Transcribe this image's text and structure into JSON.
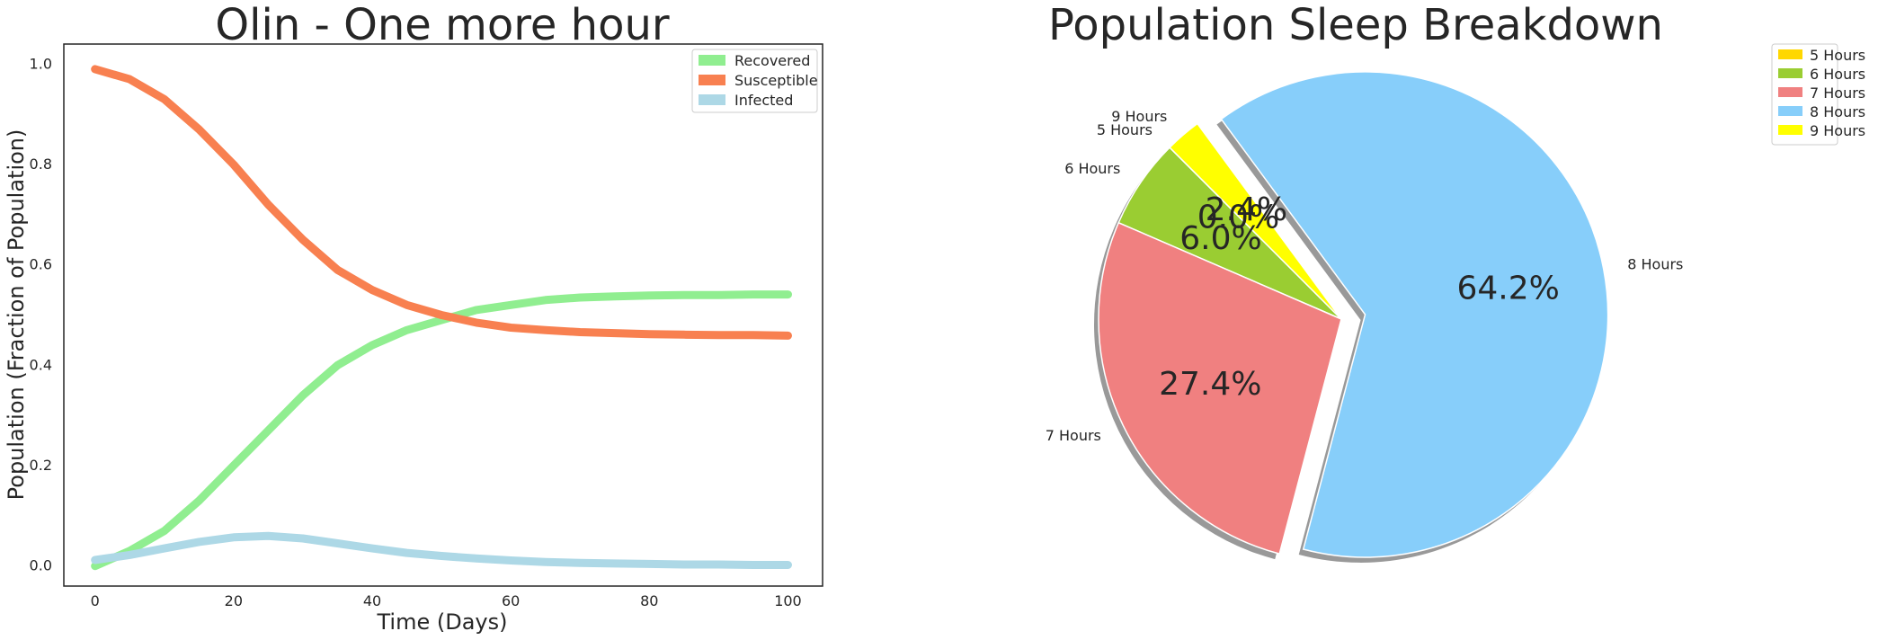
{
  "chart_data": [
    {
      "type": "line",
      "title": "Olin - One more hour",
      "xlabel": "Time (Days)",
      "ylabel": "Population (Fraction of Population)",
      "xlim": [
        -4.5,
        105
      ],
      "ylim": [
        -0.04,
        1.04
      ],
      "x_ticks": [
        "0",
        "20",
        "40",
        "60",
        "80",
        "100"
      ],
      "y_ticks": [
        "0.0",
        "0.2",
        "0.4",
        "0.6",
        "0.8",
        "1.0"
      ],
      "grid": false,
      "legend_position": "upper right",
      "x": [
        0,
        5,
        10,
        15,
        20,
        25,
        30,
        35,
        40,
        45,
        50,
        55,
        60,
        65,
        70,
        75,
        80,
        85,
        90,
        95,
        100
      ],
      "series": [
        {
          "name": "Recovered",
          "color": "#90ee90",
          "values": [
            0.0,
            0.03,
            0.07,
            0.13,
            0.2,
            0.27,
            0.34,
            0.4,
            0.44,
            0.47,
            0.49,
            0.51,
            0.52,
            0.53,
            0.535,
            0.537,
            0.539,
            0.54,
            0.54,
            0.541,
            0.541
          ]
        },
        {
          "name": "Susceptible",
          "color": "#f88050",
          "values": [
            0.99,
            0.97,
            0.93,
            0.87,
            0.8,
            0.72,
            0.65,
            0.59,
            0.55,
            0.52,
            0.5,
            0.485,
            0.475,
            0.47,
            0.466,
            0.464,
            0.462,
            0.461,
            0.46,
            0.46,
            0.459
          ]
        },
        {
          "name": "Infected",
          "color": "#add8e6",
          "values": [
            0.012,
            0.022,
            0.035,
            0.048,
            0.057,
            0.06,
            0.055,
            0.045,
            0.035,
            0.026,
            0.02,
            0.015,
            0.011,
            0.008,
            0.006,
            0.005,
            0.004,
            0.003,
            0.003,
            0.002,
            0.002
          ]
        }
      ]
    },
    {
      "type": "pie",
      "title": "Population Sleep Breakdown",
      "start_angle": 135,
      "shadow": true,
      "legend_position": "upper right outside",
      "slices": [
        {
          "label": "5 Hours",
          "value": 0.0,
          "pct_label": "0.0%",
          "color": "#ffd700",
          "explode": 0
        },
        {
          "label": "6 Hours",
          "value": 6.0,
          "pct_label": "6.0%",
          "color": "#9acd32",
          "explode": 0
        },
        {
          "label": "7 Hours",
          "value": 27.4,
          "pct_label": "27.4%",
          "color": "#f08080",
          "explode": 0
        },
        {
          "label": "8 Hours",
          "value": 64.2,
          "pct_label": "64.2%",
          "color": "#87cefa",
          "explode": 0.1
        },
        {
          "label": "9 Hours",
          "value": 2.4,
          "pct_label": "2.4%",
          "color": "#ffff00",
          "explode": 0
        }
      ]
    }
  ]
}
